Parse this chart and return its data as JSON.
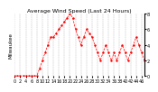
{
  "title": "Average Wind Speed (Last 24 Hours)",
  "ylabel_left": "Milwaukee",
  "y_values": [
    0,
    0,
    0,
    0,
    0,
    0,
    0,
    0,
    0,
    1,
    2,
    3,
    4,
    5,
    5,
    5.5,
    6,
    6.5,
    7,
    7.5,
    8,
    7.5,
    6,
    5,
    4,
    5,
    6,
    5.5,
    5,
    4,
    3,
    2,
    3,
    4,
    3,
    2,
    3,
    2,
    3,
    4,
    3,
    2,
    3,
    4,
    5,
    4,
    3,
    2
  ],
  "ylim": [
    0,
    8
  ],
  "yticks": [
    0,
    2,
    4,
    6,
    8
  ],
  "ytick_labels": [
    "0",
    "2",
    "4",
    "6",
    "8"
  ],
  "line_color": "#ff0000",
  "background_color": "#ffffff",
  "grid_color": "#aaaaaa",
  "title_fontsize": 4.5,
  "tick_fontsize": 3.5,
  "ylabel_fontsize": 4.0
}
